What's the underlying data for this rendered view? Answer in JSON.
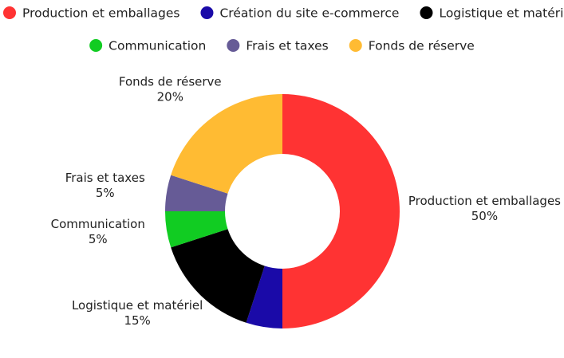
{
  "chart_data": {
    "type": "pie",
    "variant": "donut",
    "legend_position": "top",
    "title": "",
    "slices": [
      {
        "label": "Production et emballages",
        "value": 50,
        "value_label": "50%",
        "color": "#ff3333"
      },
      {
        "label": "Création du site e-commerce",
        "value": 5,
        "value_label": "",
        "color": "#1a0aa8"
      },
      {
        "label": "Logistique et matériel",
        "value": 15,
        "value_label": "15%",
        "color": "#000000"
      },
      {
        "label": "Communication",
        "value": 5,
        "value_label": "5%",
        "color": "#11cc22"
      },
      {
        "label": "Frais et taxes",
        "value": 5,
        "value_label": "5%",
        "color": "#665b96"
      },
      {
        "label": "Fonds de réserve",
        "value": 20,
        "value_label": "20%",
        "color": "#ffbb33"
      }
    ]
  }
}
